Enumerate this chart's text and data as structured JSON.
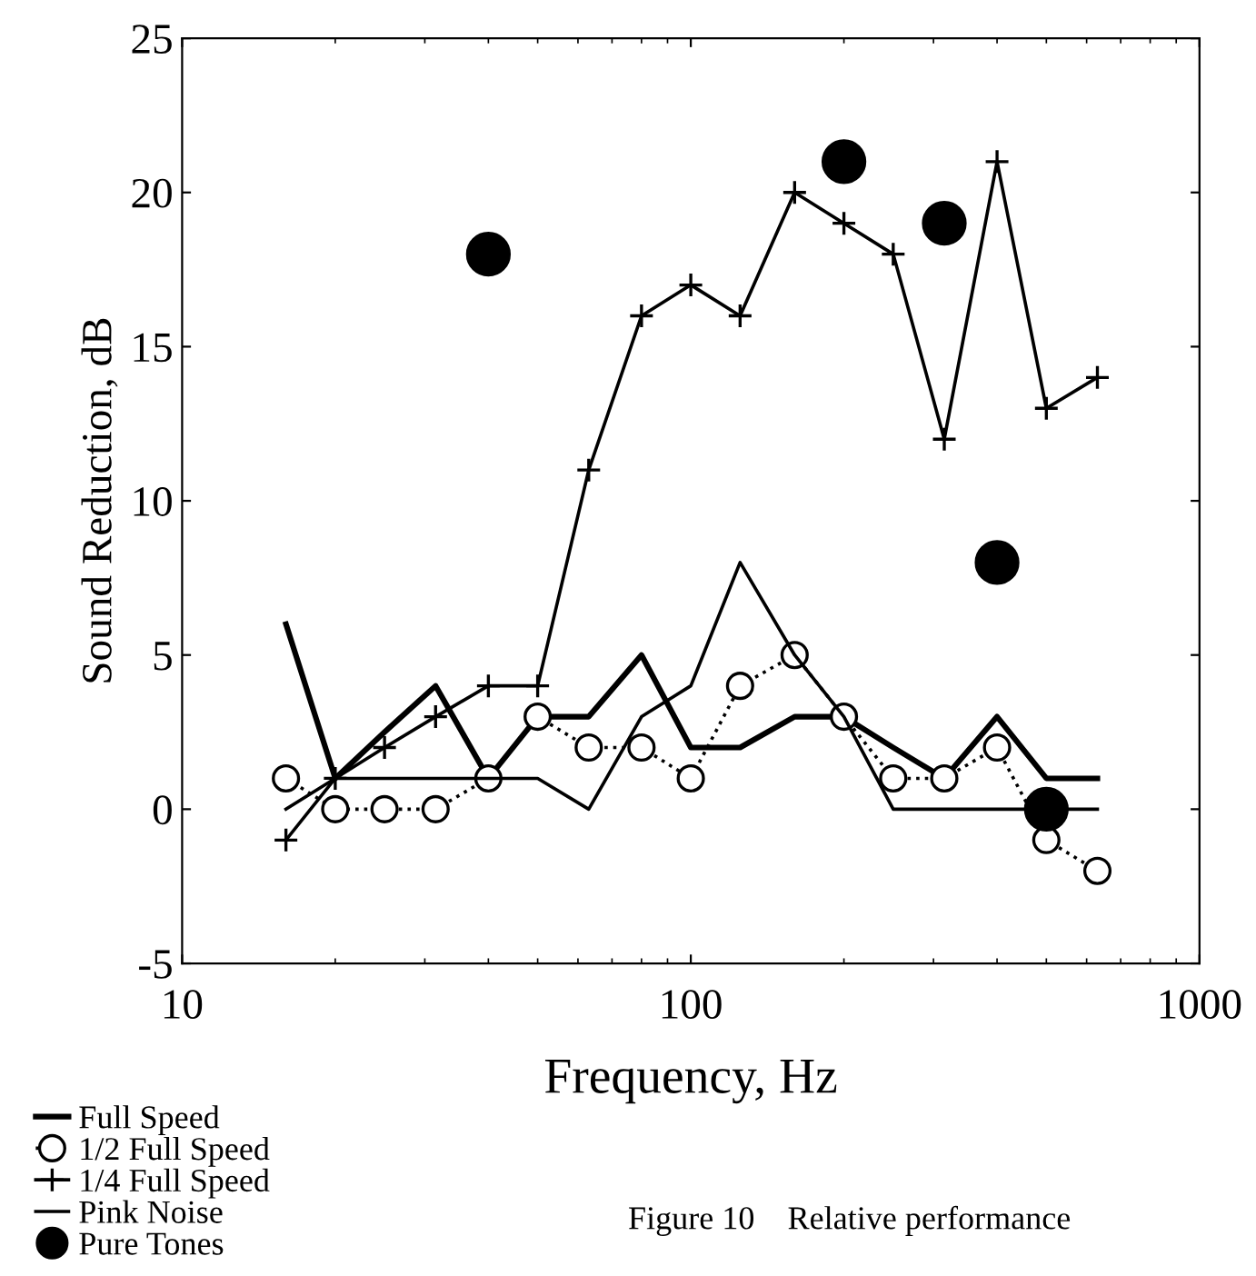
{
  "chart_data": {
    "type": "line",
    "xlabel": "Frequency, Hz",
    "ylabel": "Sound Reduction, dB",
    "x": [
      16,
      20,
      25,
      31.5,
      40,
      50,
      63,
      80,
      100,
      125,
      160,
      200,
      250,
      315,
      400,
      500,
      630
    ],
    "log": "x",
    "xlim": [
      10,
      1000
    ],
    "xticks": [
      10,
      100,
      1000
    ],
    "ylim": [
      -5,
      25
    ],
    "yticks": [
      -5,
      0,
      5,
      10,
      15,
      20,
      25
    ],
    "grid": false,
    "legend": "bottom left",
    "series": [
      {
        "name": "Full Speed",
        "color": "#000000",
        "marker": "none",
        "line_style": "solid",
        "values": [
          6,
          1,
          2.5,
          4,
          1,
          3,
          3,
          5,
          2,
          2,
          3,
          3,
          2,
          1,
          3,
          1,
          1
        ]
      },
      {
        "name": "1/2 Full Speed",
        "color": "#000000",
        "marker": "circle",
        "line_style": "dotted",
        "values": [
          1,
          0,
          0,
          0,
          1,
          3,
          2,
          2,
          1,
          4,
          5,
          3,
          1,
          1,
          2,
          -1,
          -2
        ]
      },
      {
        "name": "1/4 Full Speed",
        "color": "#000000",
        "marker": "cross",
        "line_style": "solid",
        "values": [
          -1,
          1,
          2,
          3,
          4,
          4,
          11,
          16,
          17,
          16,
          20,
          19,
          18,
          12,
          21,
          13,
          14
        ]
      },
      {
        "name": "Pink Noise",
        "color": "#000000",
        "marker": "none",
        "line_style": "solid",
        "values": [
          0,
          1,
          1,
          1,
          1,
          1,
          0,
          3,
          4,
          8,
          5,
          3,
          0,
          0,
          0,
          0,
          0
        ]
      },
      {
        "name": "Pure Tones",
        "type": "scatter",
        "color": "#000000",
        "marker": "circle",
        "x": [
          40,
          200,
          315,
          400,
          500
        ],
        "values": [
          18,
          21,
          19,
          8,
          0
        ]
      }
    ],
    "annotations": [
      "Figure 10    Relative performance"
    ]
  }
}
